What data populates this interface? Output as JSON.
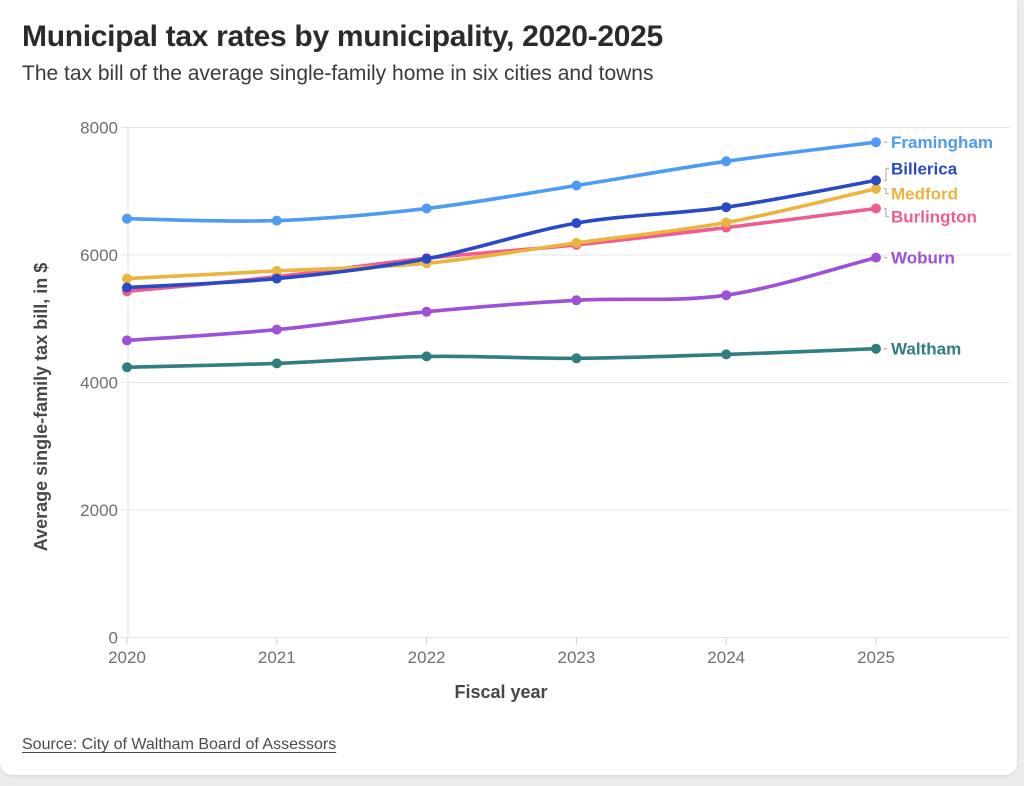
{
  "header": {
    "title": "Municipal tax rates by municipality, 2020-2025",
    "subtitle": "The tax bill of the average single-family home in six cities and towns"
  },
  "footer": {
    "source": "Source: City of Waltham Board of Assessors"
  },
  "colors": {
    "page_bg": "#ececec",
    "card_bg": "#ffffff",
    "grid": "#e4e4e4",
    "axis_line": "#e0e0e0",
    "tick_mark": "#cfcfcf",
    "tick_text": "#6f6f6f",
    "title_text": "#2b2b2b",
    "subtitle_text": "#3a3a3a",
    "axis_title_text": "#474747",
    "source_text": "#4a4a4a",
    "connector": "#b3b3b3"
  },
  "chart_data": {
    "type": "line",
    "title": "Municipal tax rates by municipality, 2020-2025",
    "subtitle": "The tax bill of the average single-family home in six cities and towns",
    "x": [
      2020,
      2021,
      2022,
      2023,
      2024,
      2025
    ],
    "xlabel": "Fiscal year",
    "ylabel": "Average single-family tax bill, in $",
    "ylim": [
      0,
      8000
    ],
    "yticks": [
      0,
      2000,
      4000,
      6000,
      8000
    ],
    "grid": "horizontal",
    "legend_position": "right-end-labels",
    "markers": true,
    "series": [
      {
        "name": "Framingham",
        "color": "#4D9BF2",
        "values": [
          6570,
          6540,
          6730,
          7090,
          7470,
          7770
        ],
        "label_dy": 0
      },
      {
        "name": "Billerica",
        "color": "#2949C6",
        "values": [
          5490,
          5630,
          5940,
          6500,
          6750,
          7170
        ],
        "label_dy": -12
      },
      {
        "name": "Medford",
        "color": "#ECB43F",
        "values": [
          5630,
          5750,
          5870,
          6190,
          6510,
          7040
        ],
        "label_dy": 5
      },
      {
        "name": "Burlington",
        "color": "#EE5D8D",
        "values": [
          5430,
          5660,
          5950,
          6160,
          6430,
          6730
        ],
        "label_dy": 8
      },
      {
        "name": "Woburn",
        "color": "#9D50D8",
        "values": [
          4660,
          4830,
          5110,
          5290,
          5370,
          5960
        ],
        "label_dy": 0
      },
      {
        "name": "Waltham",
        "color": "#317E81",
        "values": [
          4240,
          4300,
          4410,
          4380,
          4440,
          4530
        ],
        "label_dy": 0
      }
    ],
    "source": "Source: City of Waltham Board of Assessors"
  }
}
